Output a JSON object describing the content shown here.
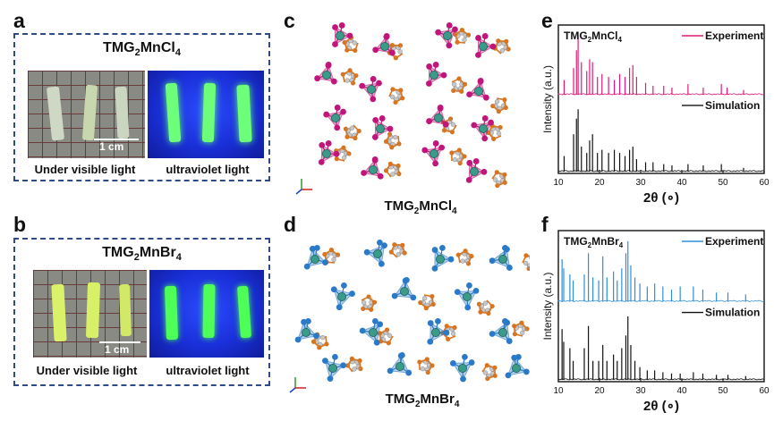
{
  "panels": {
    "a": {
      "letter": "a",
      "title_base": "TMG",
      "title_sub1": "2",
      "title_mid": "MnCl",
      "title_sub2": "4",
      "caption_left": "Under visible light",
      "caption_right": "ultraviolet light",
      "scale": "1 cm"
    },
    "b": {
      "letter": "b",
      "title_base": "TMG",
      "title_sub1": "2",
      "title_mid": "MnBr",
      "title_sub2": "4",
      "caption_left": "Under visible light",
      "caption_right": "ultraviolet light",
      "scale": "1 cm"
    },
    "c": {
      "letter": "c",
      "title_base": "TMG",
      "title_sub1": "2",
      "title_mid": "MnCl",
      "title_sub2": "4"
    },
    "d": {
      "letter": "d",
      "title_base": "TMG",
      "title_sub1": "2",
      "title_mid": "MnBr",
      "title_sub2": "4"
    },
    "e": {
      "letter": "e"
    },
    "f": {
      "letter": "f"
    }
  },
  "colors": {
    "box_border": "#2f4a86",
    "mncl_exp": "#e0197a",
    "mnbr_exp": "#2e8fd6",
    "sim": "#111111",
    "green_uv": "#4dff57",
    "mn": "#3a9b8a",
    "carbon": "#d9731e",
    "h_atom": "#c8c8c8",
    "cl": "#c0157a",
    "br": "#2a7ac8"
  },
  "chart_data": [
    {
      "type": "line",
      "panel": "e",
      "compound": {
        "base": "TMG",
        "sub1": "2",
        "mid": "MnCl",
        "sub2": "4"
      },
      "xlabel": "2θ (∘)",
      "ylabel": "Intensity (a.u.)",
      "xlim": [
        10,
        60
      ],
      "xticks": [
        10,
        20,
        30,
        40,
        50,
        60
      ],
      "series": [
        {
          "name": "Experiment",
          "color": "#e0197a",
          "peaks": [
            [
              11.4,
              0.25
            ],
            [
              13.7,
              0.45
            ],
            [
              14.4,
              0.75
            ],
            [
              14.8,
              1.0
            ],
            [
              15.6,
              0.55
            ],
            [
              16.9,
              0.4
            ],
            [
              17.6,
              0.6
            ],
            [
              18.3,
              0.55
            ],
            [
              19.5,
              0.3
            ],
            [
              20.6,
              0.35
            ],
            [
              22.2,
              0.3
            ],
            [
              23.6,
              0.25
            ],
            [
              24.9,
              0.35
            ],
            [
              26.2,
              0.3
            ],
            [
              27.3,
              0.45
            ],
            [
              28.1,
              0.5
            ],
            [
              29.0,
              0.3
            ],
            [
              31.2,
              0.2
            ],
            [
              33.0,
              0.15
            ],
            [
              35.6,
              0.15
            ],
            [
              37.6,
              0.12
            ],
            [
              41.5,
              0.18
            ],
            [
              45.2,
              0.12
            ],
            [
              49.6,
              0.18
            ],
            [
              51.0,
              0.12
            ],
            [
              55.0,
              0.08
            ]
          ]
        },
        {
          "name": "Simulation",
          "color": "#111111",
          "peaks": [
            [
              11.4,
              0.25
            ],
            [
              13.7,
              0.6
            ],
            [
              14.4,
              0.85
            ],
            [
              14.8,
              1.0
            ],
            [
              15.6,
              0.4
            ],
            [
              16.9,
              0.3
            ],
            [
              17.6,
              0.5
            ],
            [
              18.3,
              0.6
            ],
            [
              19.5,
              0.3
            ],
            [
              20.6,
              0.35
            ],
            [
              22.2,
              0.3
            ],
            [
              23.6,
              0.35
            ],
            [
              24.9,
              0.3
            ],
            [
              26.2,
              0.25
            ],
            [
              27.3,
              0.35
            ],
            [
              28.1,
              0.4
            ],
            [
              29.0,
              0.2
            ],
            [
              31.2,
              0.15
            ],
            [
              33.0,
              0.15
            ],
            [
              35.6,
              0.12
            ],
            [
              37.6,
              0.1
            ],
            [
              41.5,
              0.12
            ],
            [
              45.2,
              0.1
            ],
            [
              49.6,
              0.12
            ],
            [
              55.0,
              0.06
            ]
          ]
        }
      ]
    },
    {
      "type": "line",
      "panel": "f",
      "compound": {
        "base": "TMG",
        "sub1": "2",
        "mid": "MnBr",
        "sub2": "4"
      },
      "xlabel": "2θ (∘)",
      "ylabel": "Intensity (a.u.)",
      "xlim": [
        10,
        60
      ],
      "xticks": [
        10,
        20,
        30,
        40,
        50,
        60
      ],
      "series": [
        {
          "name": "Experiment",
          "color": "#2e8fd6",
          "peaks": [
            [
              10.9,
              0.7
            ],
            [
              11.3,
              0.55
            ],
            [
              12.8,
              0.45
            ],
            [
              13.6,
              0.35
            ],
            [
              16.3,
              0.45
            ],
            [
              17.3,
              0.8
            ],
            [
              18.4,
              0.4
            ],
            [
              19.8,
              0.35
            ],
            [
              20.8,
              0.75
            ],
            [
              21.8,
              0.4
            ],
            [
              23.4,
              0.5
            ],
            [
              24.3,
              0.35
            ],
            [
              25.4,
              0.55
            ],
            [
              26.4,
              0.8
            ],
            [
              26.9,
              1.0
            ],
            [
              27.6,
              0.6
            ],
            [
              28.6,
              0.4
            ],
            [
              29.8,
              0.3
            ],
            [
              31.6,
              0.25
            ],
            [
              33.4,
              0.3
            ],
            [
              35.4,
              0.25
            ],
            [
              37.5,
              0.2
            ],
            [
              39.6,
              0.25
            ],
            [
              42.8,
              0.25
            ],
            [
              45.1,
              0.2
            ],
            [
              48.4,
              0.15
            ],
            [
              51.2,
              0.15
            ],
            [
              55.5,
              0.12
            ]
          ]
        },
        {
          "name": "Simulation",
          "color": "#111111",
          "peaks": [
            [
              10.9,
              0.8
            ],
            [
              11.3,
              0.6
            ],
            [
              12.8,
              0.5
            ],
            [
              13.6,
              0.3
            ],
            [
              16.3,
              0.5
            ],
            [
              17.3,
              0.85
            ],
            [
              18.4,
              0.3
            ],
            [
              19.8,
              0.3
            ],
            [
              20.8,
              0.55
            ],
            [
              21.8,
              0.3
            ],
            [
              23.4,
              0.4
            ],
            [
              24.3,
              0.3
            ],
            [
              25.4,
              0.5
            ],
            [
              26.4,
              0.7
            ],
            [
              26.9,
              1.0
            ],
            [
              27.6,
              0.55
            ],
            [
              28.6,
              0.3
            ],
            [
              29.8,
              0.2
            ],
            [
              31.6,
              0.15
            ],
            [
              33.4,
              0.15
            ],
            [
              35.4,
              0.12
            ],
            [
              37.5,
              0.1
            ],
            [
              39.6,
              0.1
            ],
            [
              42.8,
              0.12
            ],
            [
              45.1,
              0.1
            ],
            [
              48.4,
              0.08
            ],
            [
              51.2,
              0.08
            ],
            [
              55.5,
              0.06
            ]
          ]
        }
      ]
    }
  ]
}
